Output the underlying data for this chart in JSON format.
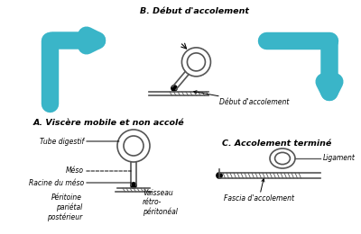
{
  "bg_color": "white",
  "title_A": "A. Viscère mobile et non accolé",
  "title_B": "B. Début d'accolement",
  "title_C": "C. Accolement terminé",
  "arrow_color": "#3ab5c8",
  "draw_color": "#555555",
  "labels_A_tube": "Tube digestif",
  "labels_A_meso": "Méso",
  "labels_A_racine": "Racine du méso",
  "labels_A_peritoine": "Péritoine\npariétal\npostérieur",
  "labels_A_vaisseau": "Vaisseau\nrétro-\npéritonéal",
  "labels_B_debut": "Début d'accolement",
  "labels_C_ligament": "Ligament",
  "labels_C_fascia": "Fascia d'accolement"
}
